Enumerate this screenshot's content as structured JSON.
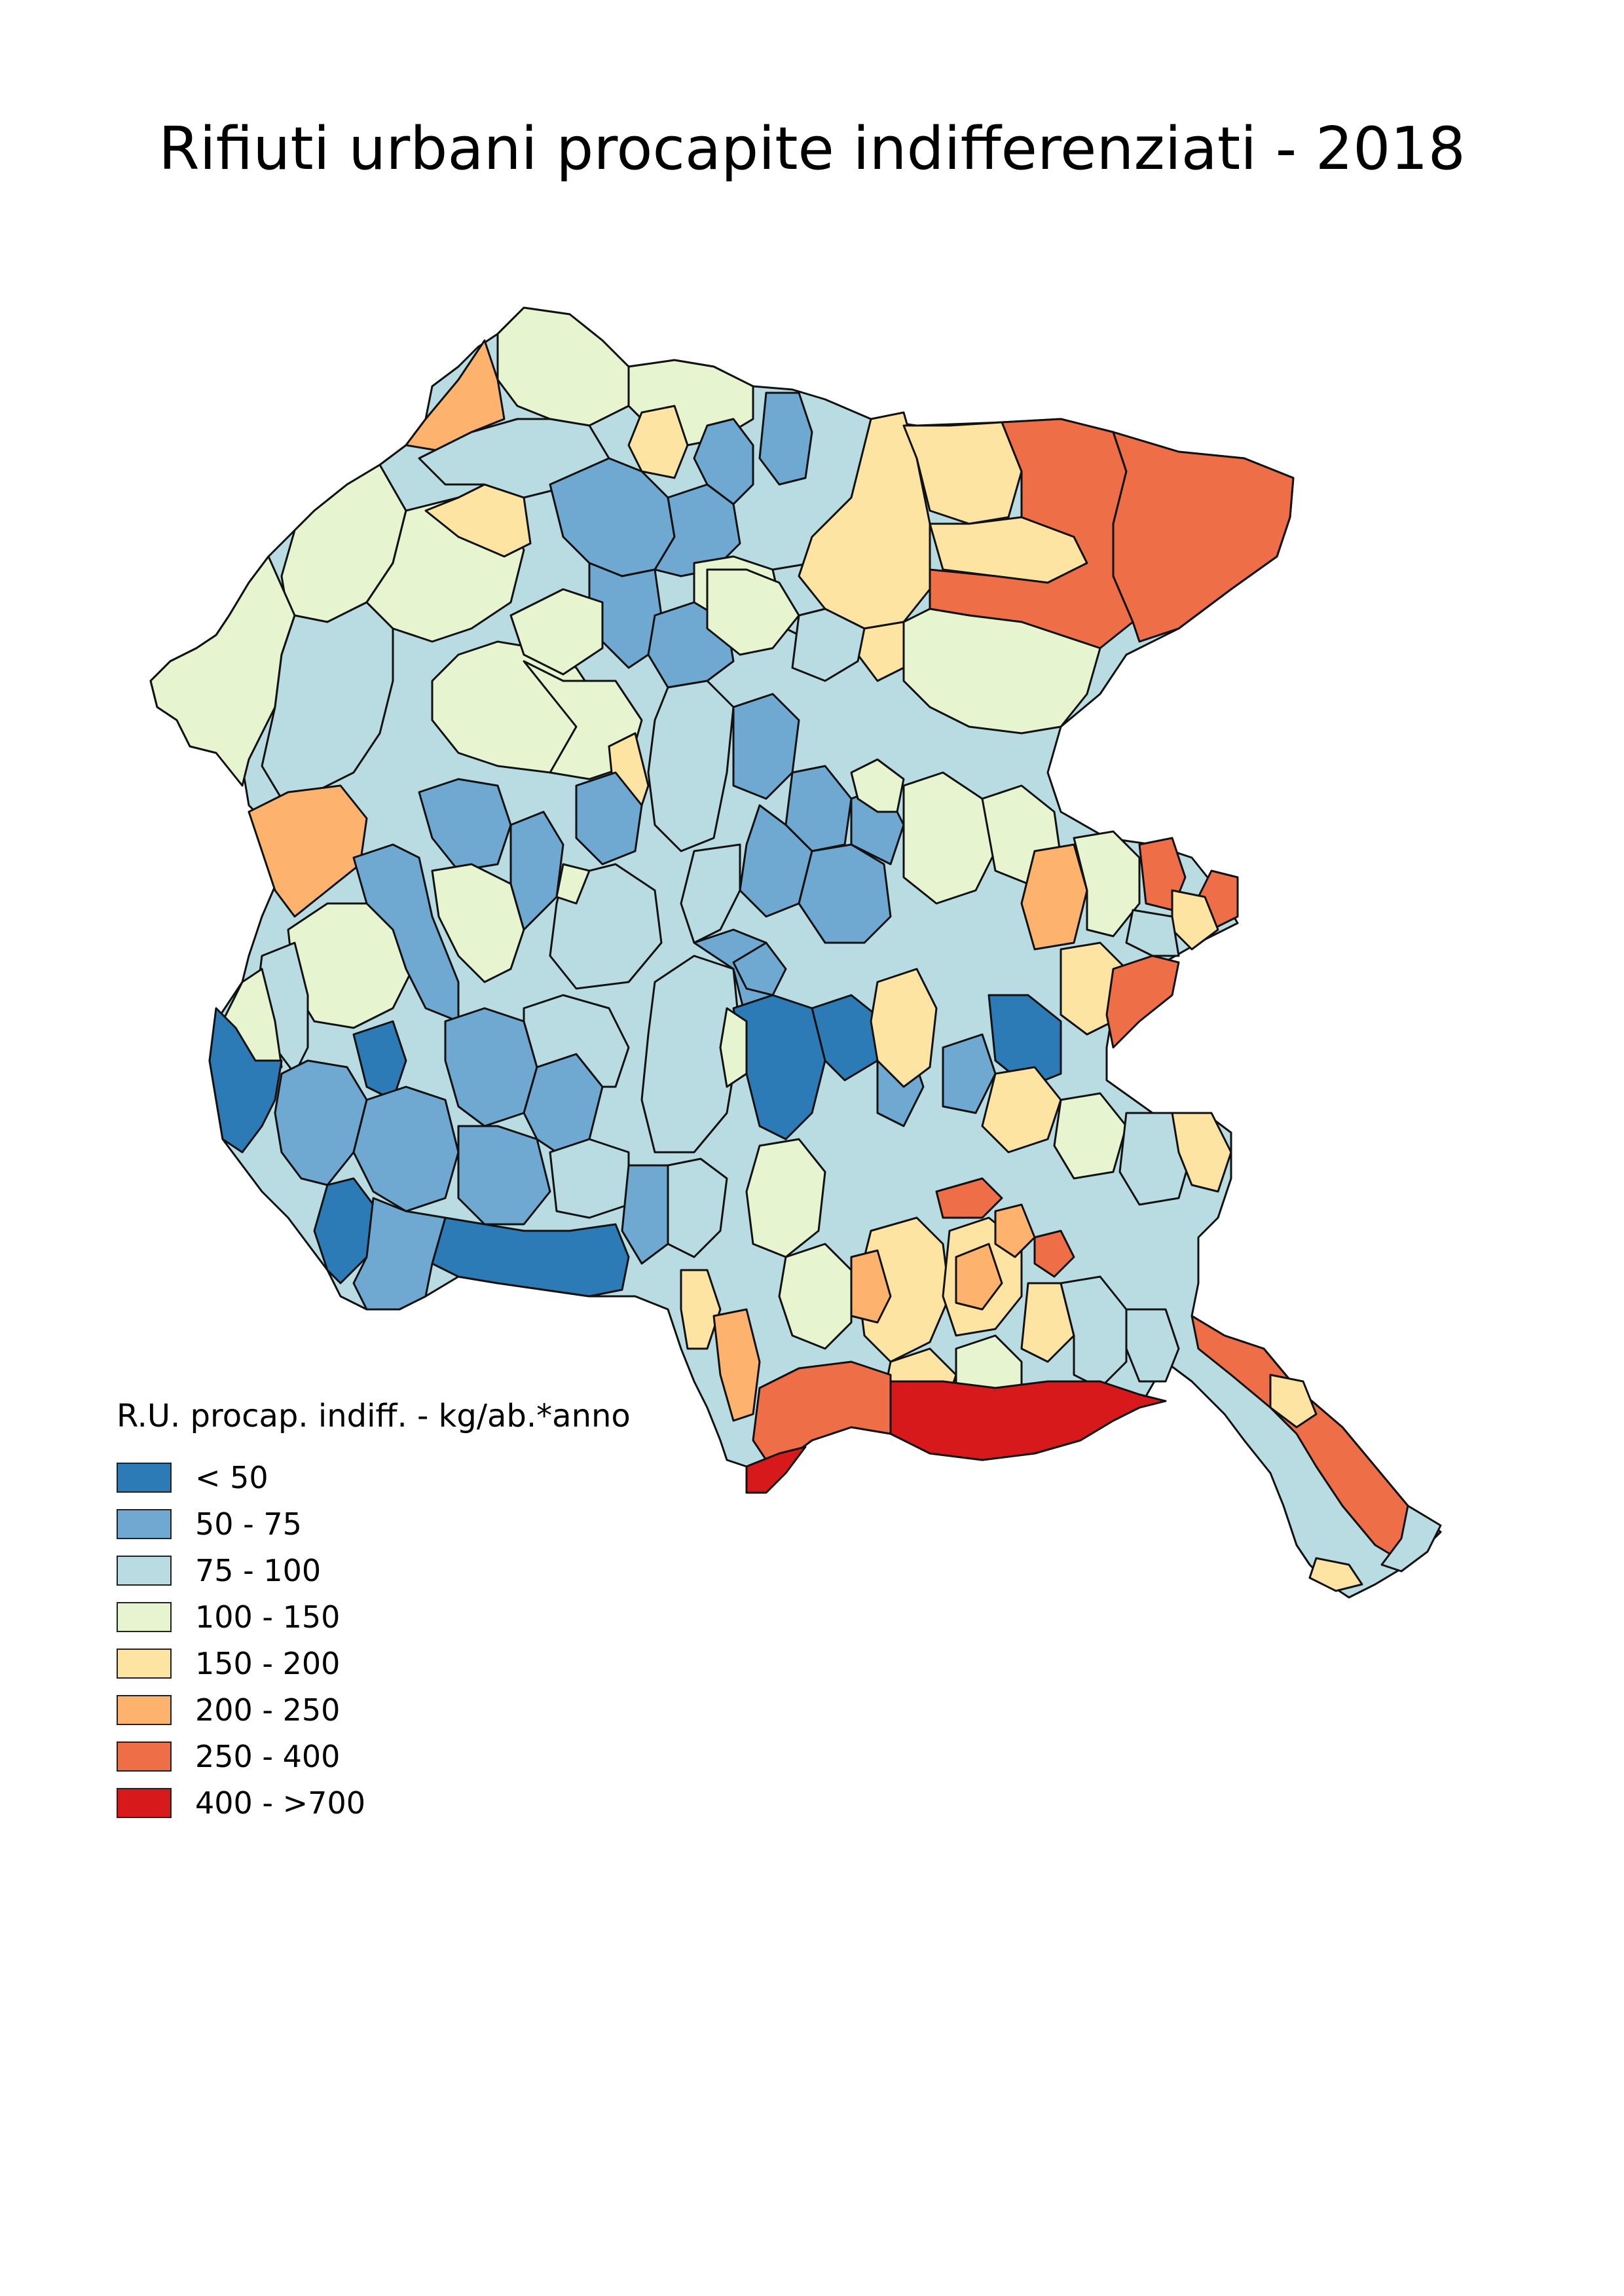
{
  "title": "Rifiuti urbani procapite indifferenziati - 2018",
  "legend": {
    "title": "R.U. procap. indiff. - kg/ab.*anno",
    "classes": [
      {
        "label": "< 50",
        "color": "#2c7bb6"
      },
      {
        "label": "50 - 75",
        "color": "#6fa9d2"
      },
      {
        "label": "75 - 100",
        "color": "#b9dce3"
      },
      {
        "label": "100 - 150",
        "color": "#e6f4cf"
      },
      {
        "label": "150 - 200",
        "color": "#fee4a2"
      },
      {
        "label": "200 - 250",
        "color": "#fdb36e"
      },
      {
        "label": "250 - 400",
        "color": "#ee6e47"
      },
      {
        "label": "400 - >700",
        "color": "#d7191c"
      }
    ]
  },
  "colors": {
    "boundary": "#111111",
    "background": "#ffffff"
  }
}
